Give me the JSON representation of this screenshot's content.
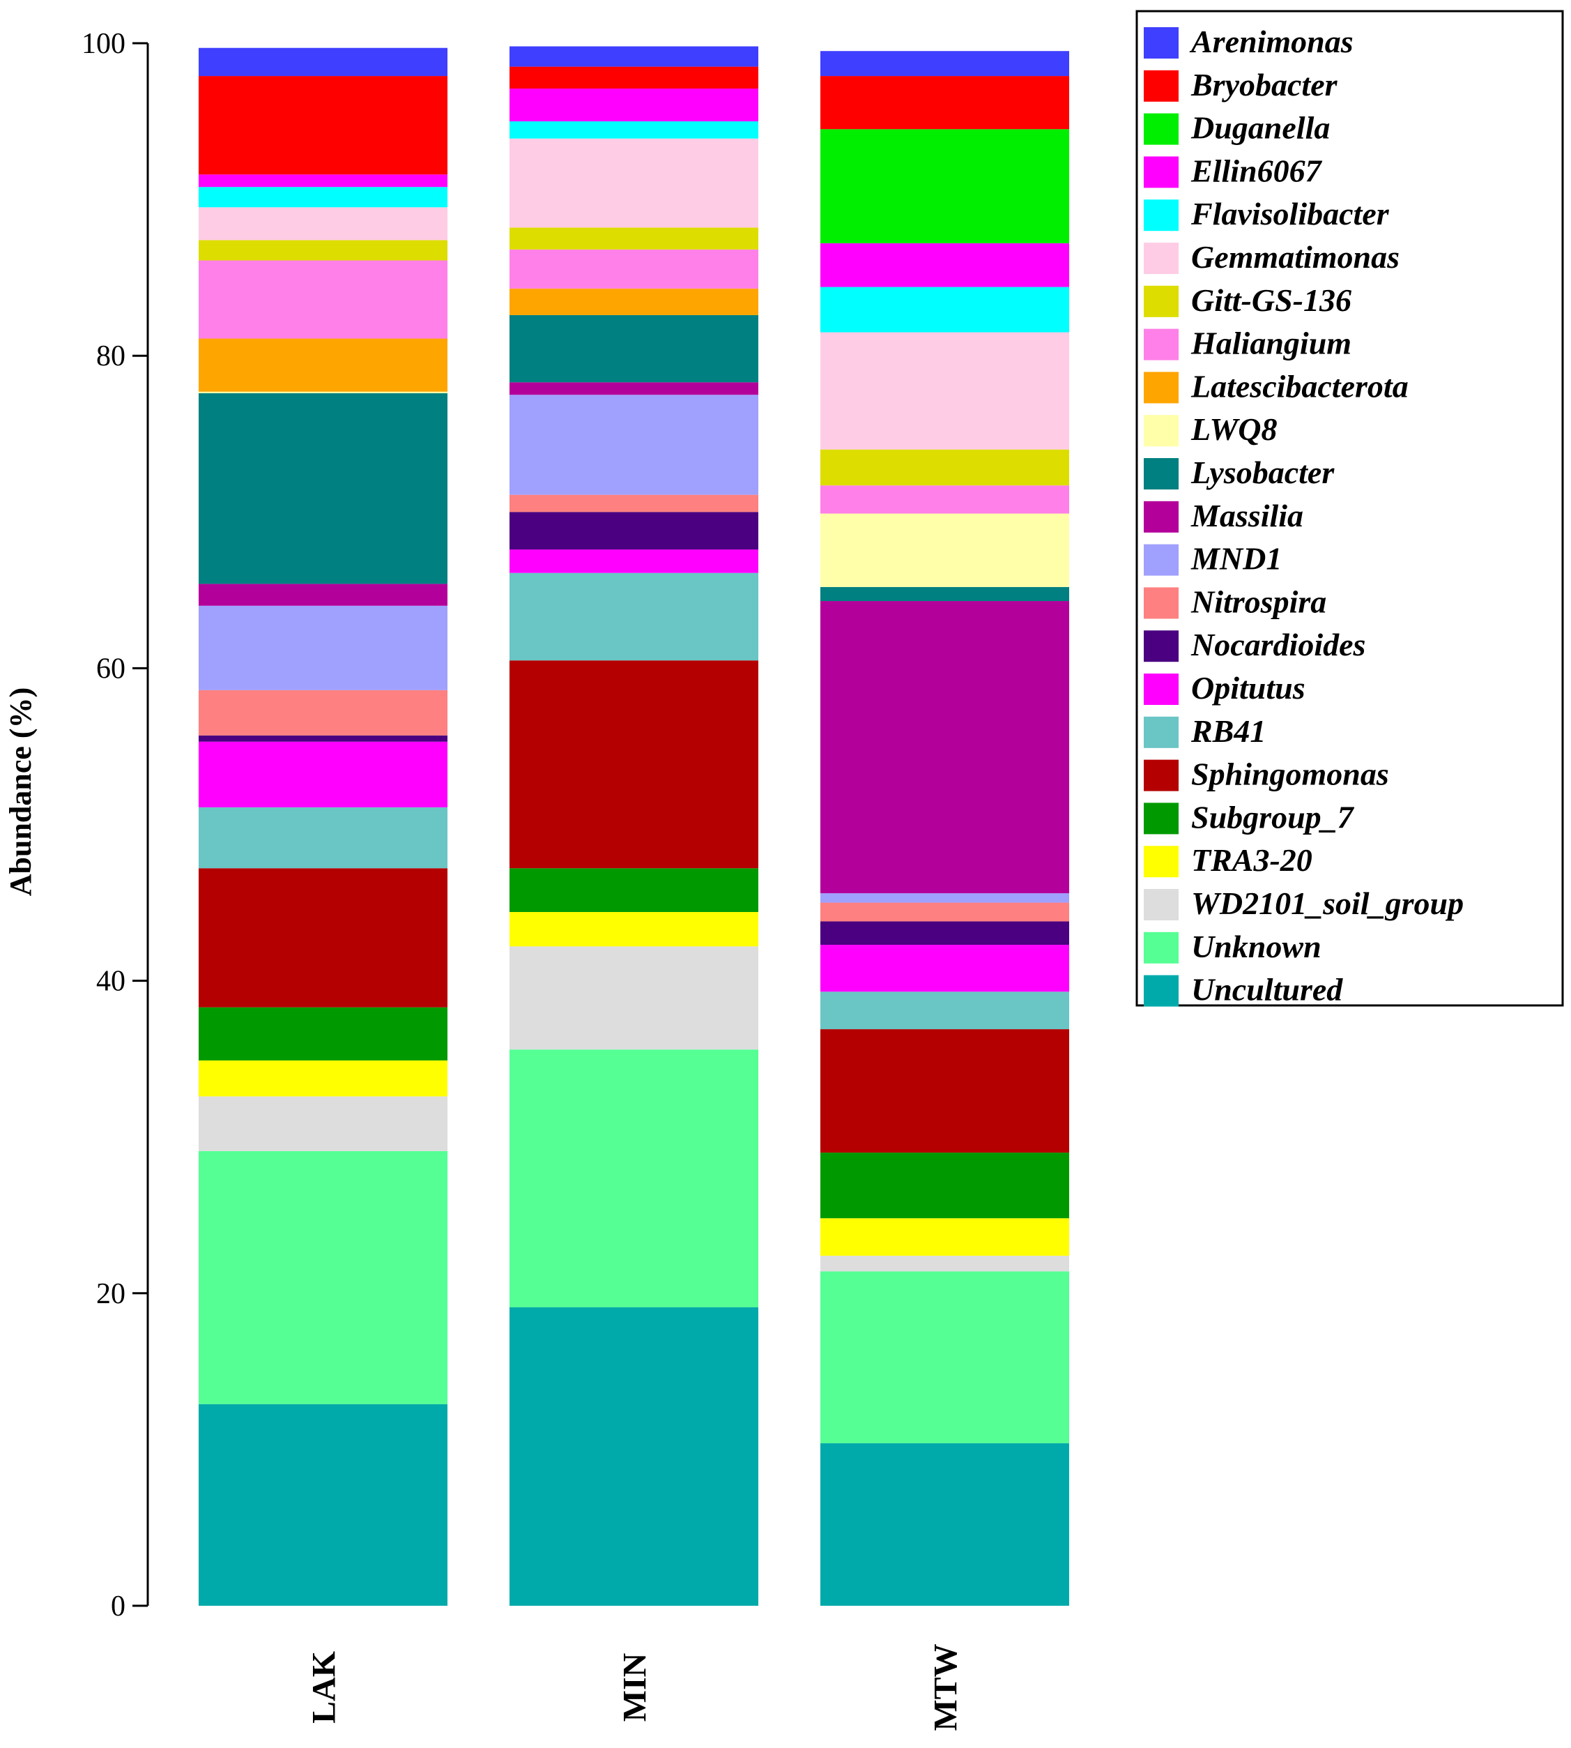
{
  "chart_data": {
    "type": "bar",
    "stacked": true,
    "title": "",
    "xlabel": "",
    "ylabel": "Abundance (%)",
    "ylim": [
      0,
      100
    ],
    "yticks": [
      0,
      20,
      40,
      60,
      80,
      100
    ],
    "categories": [
      "LAK",
      "MIN",
      "MTW"
    ],
    "legend_position": "top-right",
    "series": [
      {
        "name": "Uncultured",
        "color": "#00AAAA",
        "values": [
          12.9,
          19.1,
          10.4
        ]
      },
      {
        "name": "Unknown",
        "color": "#55FF94",
        "values": [
          16.2,
          16.5,
          11.0
        ]
      },
      {
        "name": "WD2101_soil_group",
        "color": "#DDDDDD",
        "values": [
          3.5,
          6.6,
          1.0
        ]
      },
      {
        "name": "TRA3-20",
        "color": "#FFFF00",
        "values": [
          2.3,
          2.2,
          2.4
        ]
      },
      {
        "name": "Subgroup_7",
        "color": "#009A00",
        "values": [
          3.4,
          2.8,
          4.2
        ]
      },
      {
        "name": "Sphingomonas",
        "color": "#B40000",
        "values": [
          8.9,
          13.3,
          7.9
        ]
      },
      {
        "name": "RB41",
        "color": "#6AC5C5",
        "values": [
          3.9,
          5.6,
          2.4
        ]
      },
      {
        "name": "Opitutus",
        "color": "#FF00FF",
        "values": [
          4.2,
          1.5,
          3.0
        ]
      },
      {
        "name": "Nocardioides",
        "color": "#4A0080",
        "values": [
          0.4,
          2.4,
          1.5
        ]
      },
      {
        "name": "Nitrospira",
        "color": "#FF8080",
        "values": [
          2.9,
          1.1,
          1.2
        ]
      },
      {
        "name": "MND1",
        "color": "#A0A0FF",
        "values": [
          5.4,
          6.4,
          0.6
        ]
      },
      {
        "name": "Massilia",
        "color": "#B4009A",
        "values": [
          1.4,
          0.8,
          18.7
        ]
      },
      {
        "name": "Lysobacter",
        "color": "#008080",
        "values": [
          12.2,
          4.3,
          0.9
        ]
      },
      {
        "name": "LWQ8",
        "color": "#FFFFAA",
        "values": [
          0.1,
          0.0,
          4.7
        ]
      },
      {
        "name": "Latescibacterota",
        "color": "#FFA500",
        "values": [
          3.4,
          1.7,
          0.0
        ]
      },
      {
        "name": "Haliangium",
        "color": "#FF80E8",
        "values": [
          5.0,
          2.5,
          1.8
        ]
      },
      {
        "name": "Gitt-GS-136",
        "color": "#DDDD00",
        "values": [
          1.3,
          1.4,
          2.3
        ]
      },
      {
        "name": "Gemmatimonas",
        "color": "#FFCCE5",
        "values": [
          2.1,
          5.7,
          7.5
        ]
      },
      {
        "name": "Flavisolibacter",
        "color": "#00FFFF",
        "values": [
          1.3,
          1.1,
          2.9
        ]
      },
      {
        "name": "Ellin6067",
        "color": "#FF00FF",
        "values": [
          0.8,
          2.1,
          2.8
        ]
      },
      {
        "name": "Duganella",
        "color": "#00EE00",
        "values": [
          0.0,
          0.0,
          7.3
        ]
      },
      {
        "name": "Bryobacter",
        "color": "#FF0000",
        "values": [
          6.3,
          1.4,
          3.4
        ]
      },
      {
        "name": "Arenimonas",
        "color": "#3F3FFF",
        "values": [
          1.8,
          1.3,
          1.6
        ]
      }
    ],
    "legend_order": [
      "Arenimonas",
      "Bryobacter",
      "Duganella",
      "Ellin6067",
      "Flavisolibacter",
      "Gemmatimonas",
      "Gitt-GS-136",
      "Haliangium",
      "Latescibacterota",
      "LWQ8",
      "Lysobacter",
      "Massilia",
      "MND1",
      "Nitrospira",
      "Nocardioides",
      "Opitutus",
      "RB41",
      "Sphingomonas",
      "Subgroup_7",
      "TRA3-20",
      "WD2101_soil_group",
      "Unknown",
      "Uncultured"
    ]
  }
}
